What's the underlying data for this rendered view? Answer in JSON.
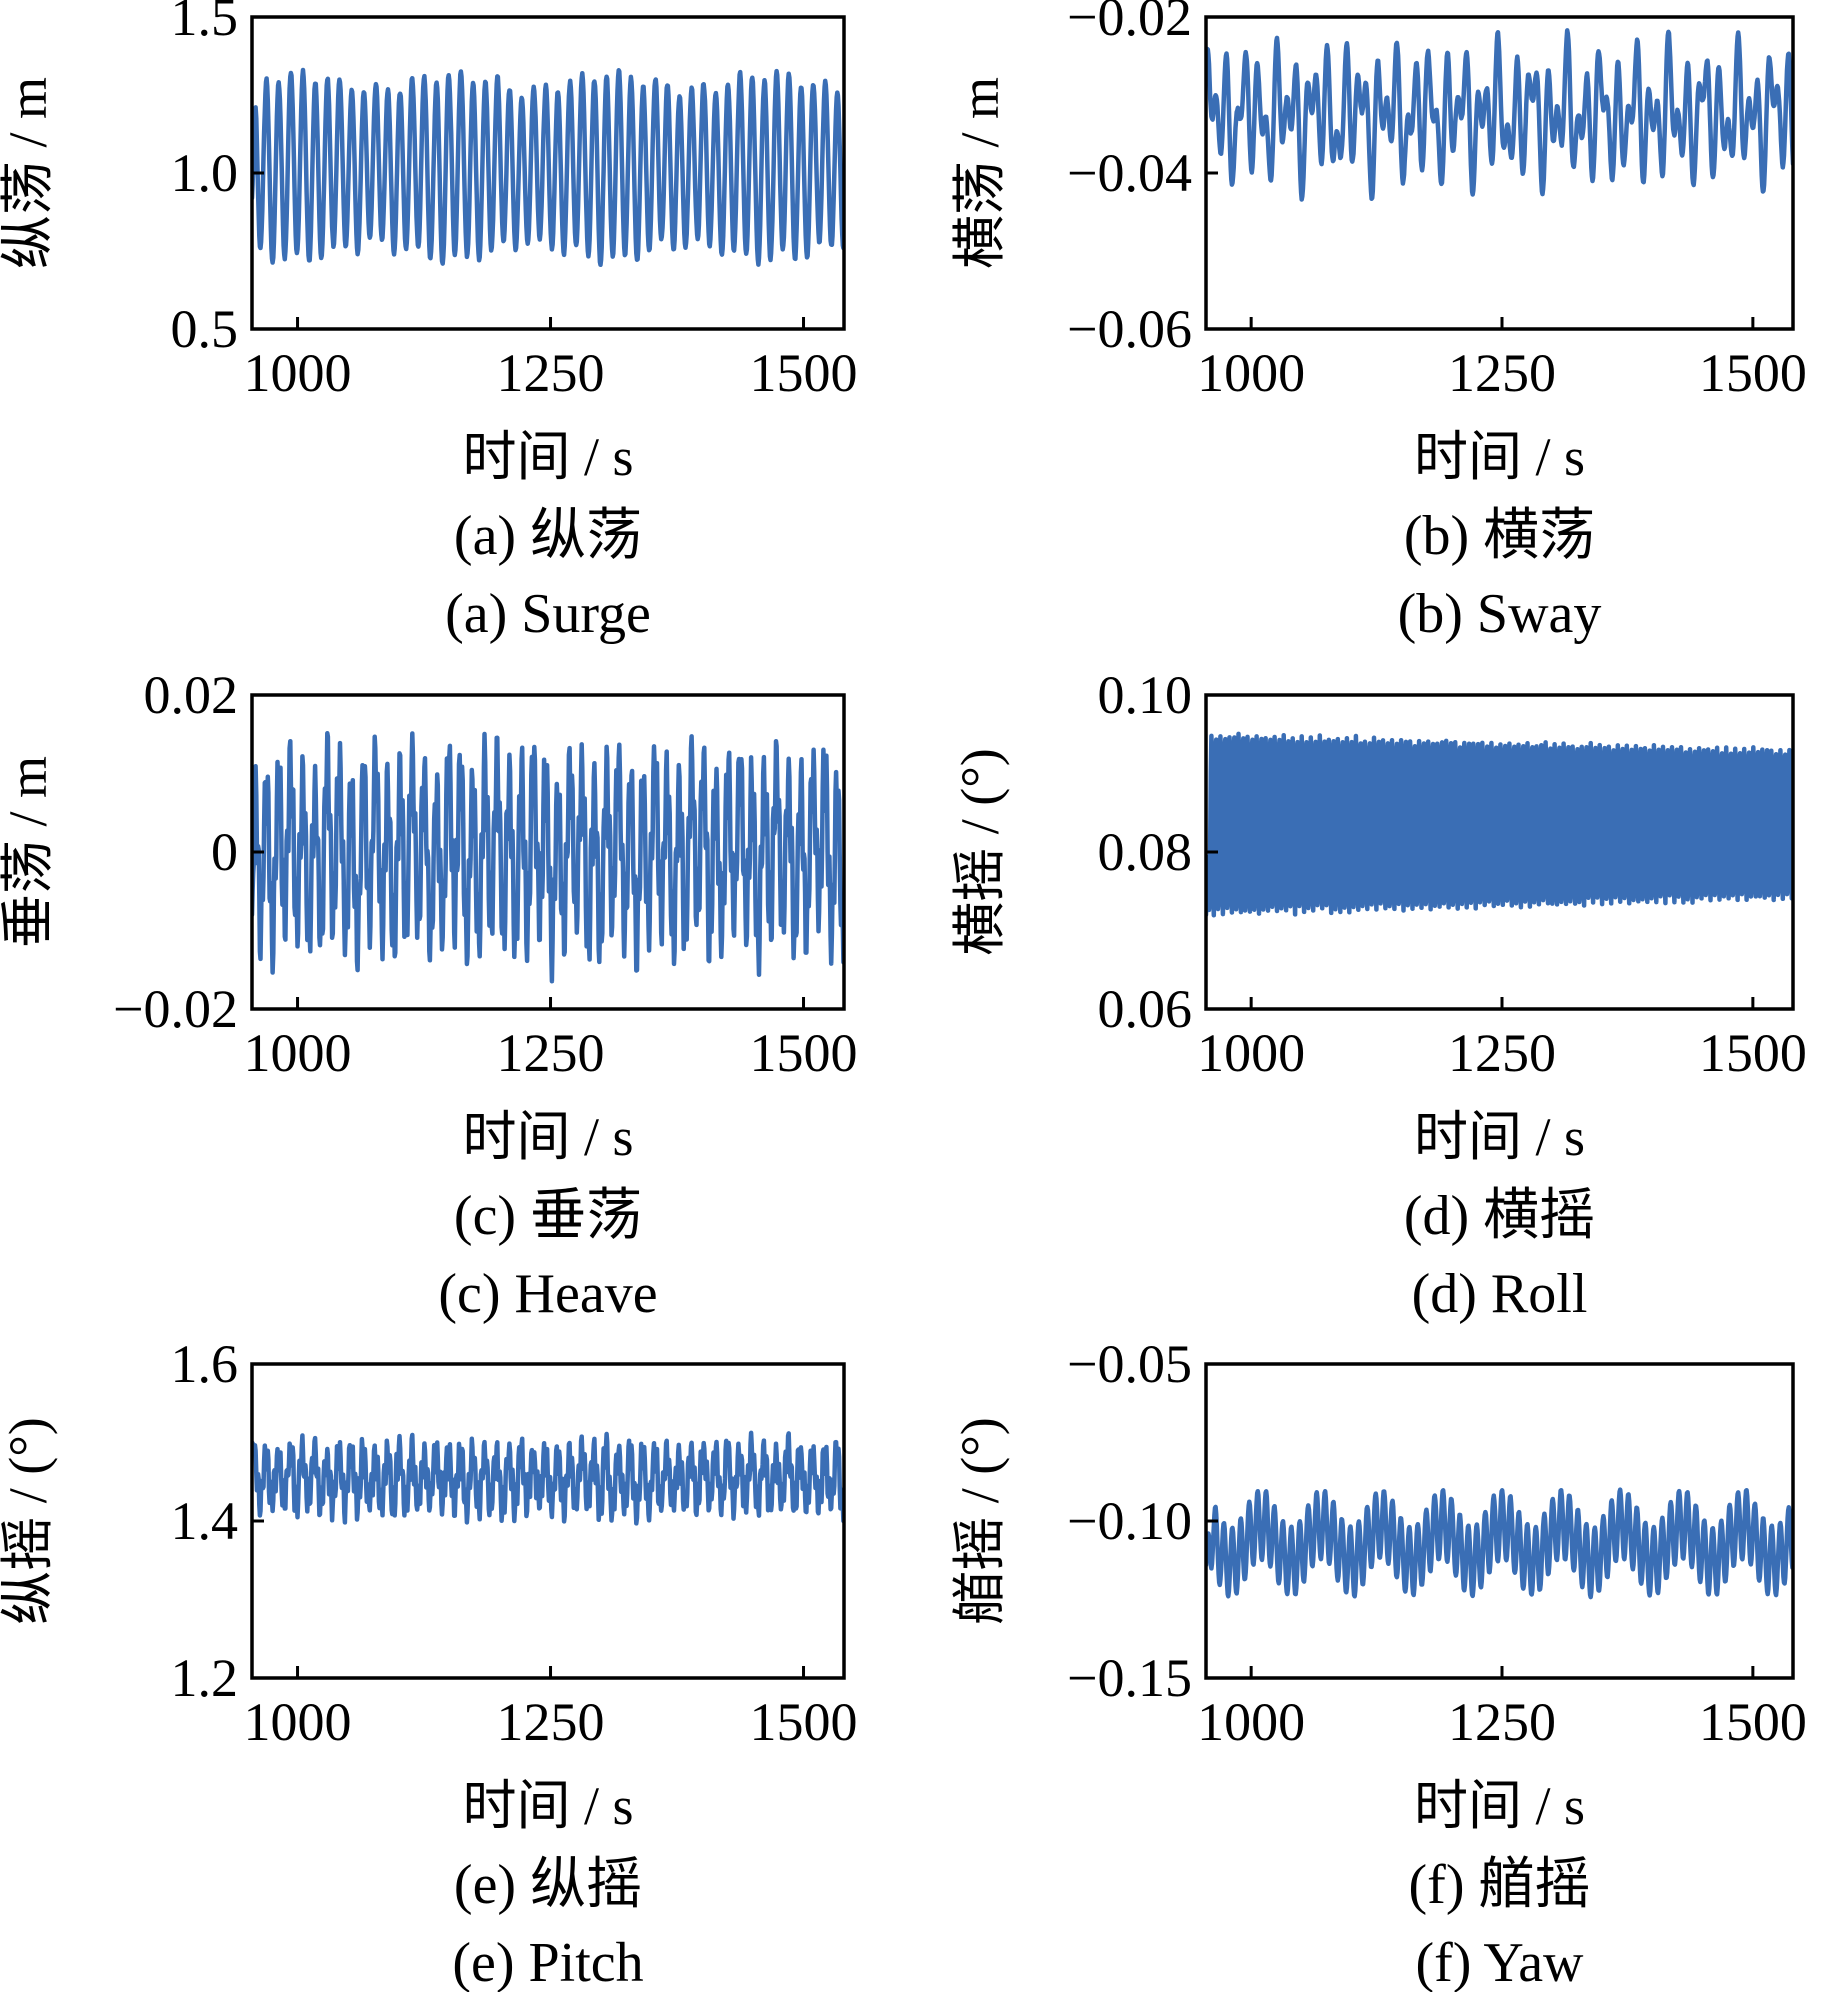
{
  "style": {
    "line_color": "#3a6eb5"
  },
  "chart_data": [
    {
      "type": "line",
      "panel": "a",
      "ylabel": "纵荡 / m",
      "xlabel": "时间 / s",
      "caption_cn": "(a) 纵荡",
      "caption_en": "(a) Surge",
      "xlim": [
        955,
        1540
      ],
      "ylim": [
        0.5,
        1.5
      ],
      "xticks": [
        1000,
        1250,
        1500
      ],
      "xtick_labels": [
        "1000",
        "1250",
        "1500"
      ],
      "yticks": [
        0.5,
        1.0,
        1.5
      ],
      "ytick_labels": [
        "0.5",
        "1.0",
        "1.5"
      ],
      "series": [
        {
          "gen": {
            "mean": 1.02,
            "comps": [
              [
                0.27,
                12,
                0.3
              ],
              [
                0.02,
                40,
                1.1
              ],
              [
                0.025,
                13,
                2.0
              ]
            ],
            "noise": 0.015,
            "start": 0.92
          }
        }
      ]
    },
    {
      "type": "line",
      "panel": "b",
      "ylabel": "横荡 / m",
      "xlabel": "时间 / s",
      "caption_cn": "(b) 横荡",
      "caption_en": "(b) Sway",
      "xlim": [
        955,
        1540
      ],
      "ylim": [
        -0.06,
        -0.02
      ],
      "xticks": [
        1000,
        1250,
        1500
      ],
      "xtick_labels": [
        "1000",
        "1250",
        "1500"
      ],
      "yticks": [
        -0.06,
        -0.04,
        -0.02
      ],
      "ytick_labels": [
        "−0.06",
        "−0.04",
        "−0.02"
      ],
      "series": [
        {
          "gen": {
            "mean": -0.0325,
            "comps": [
              [
                0.0045,
                17,
                0.5
              ],
              [
                0.0045,
                10,
                1.3
              ],
              [
                0.002,
                35,
                0.2
              ]
            ],
            "noise": 0.0006,
            "start": -0.024
          }
        }
      ]
    },
    {
      "type": "line",
      "panel": "c",
      "ylabel": "垂荡 / m",
      "xlabel": "时间 / s",
      "caption_cn": "(c) 垂荡",
      "caption_en": "(c) Heave",
      "xlim": [
        955,
        1540
      ],
      "ylim": [
        -0.02,
        0.02
      ],
      "xticks": [
        1000,
        1250,
        1500
      ],
      "xtick_labels": [
        "1000",
        "1250",
        "1500"
      ],
      "yticks": [
        -0.02,
        0,
        0.02
      ],
      "ytick_labels": [
        "−0.02",
        "0",
        "0.02"
      ],
      "series": [
        {
          "gen": {
            "mean": 0.0,
            "comps": [
              [
                0.009,
                12,
                0.4
              ],
              [
                0.0045,
                3.1,
                0.9
              ],
              [
                0.002,
                40,
                1.7
              ]
            ],
            "noise": 0.0025,
            "start": -0.008
          }
        }
      ]
    },
    {
      "type": "line",
      "panel": "d",
      "ylabel": "横摇 / (°)",
      "xlabel": "时间 / s",
      "caption_cn": "(d) 横摇",
      "caption_en": "(d) Roll",
      "xlim": [
        955,
        1540
      ],
      "ylim": [
        0.06,
        0.1
      ],
      "xticks": [
        1000,
        1250,
        1500
      ],
      "xtick_labels": [
        "1000",
        "1250",
        "1500"
      ],
      "yticks": [
        0.06,
        0.08,
        0.1
      ],
      "ytick_labels": [
        "0.06",
        "0.08",
        "0.10"
      ],
      "series": [
        {
          "gen": {
            "mean": 0.0835,
            "comps": [
              [
                0.0115,
                4.5,
                0.2
              ]
            ],
            "decay": 0.0025,
            "noise": 0.0005,
            "start": 0.072
          }
        }
      ]
    },
    {
      "type": "line",
      "panel": "e",
      "ylabel": "纵摇 / (°)",
      "xlabel": "时间 / s",
      "caption_cn": "(e) 纵摇",
      "caption_en": "(e) Pitch",
      "xlim": [
        955,
        1540
      ],
      "ylim": [
        1.2,
        1.6
      ],
      "xticks": [
        1000,
        1250,
        1500
      ],
      "xtick_labels": [
        "1000",
        "1250",
        "1500"
      ],
      "yticks": [
        1.2,
        1.4,
        1.6
      ],
      "ytick_labels": [
        "1.2",
        "1.4",
        "1.6"
      ],
      "series": [
        {
          "gen": {
            "mean": 1.455,
            "comps": [
              [
                0.03,
                12,
                0.6
              ],
              [
                0.02,
                3.1,
                1.2
              ]
            ],
            "noise": 0.018,
            "start": 1.5
          }
        }
      ]
    },
    {
      "type": "line",
      "panel": "f",
      "ylabel": "艏摇 / (°)",
      "xlabel": "时间 / s",
      "caption_cn": "(f) 艏摇",
      "caption_en": "(f) Yaw",
      "xlim": [
        955,
        1540
      ],
      "ylim": [
        -0.15,
        -0.05
      ],
      "xticks": [
        1000,
        1250,
        1500
      ],
      "xtick_labels": [
        "1000",
        "1250",
        "1500"
      ],
      "yticks": [
        -0.15,
        -0.1,
        -0.05
      ],
      "ytick_labels": [
        "−0.15",
        "−0.10",
        "−0.05"
      ],
      "series": [
        {
          "gen": {
            "mean": -0.107,
            "comps": [
              [
                0.011,
                8.4,
                0.8
              ],
              [
                0.006,
                60,
                2.1
              ]
            ],
            "noise": 0.0007,
            "start": -0.114
          }
        }
      ]
    }
  ]
}
